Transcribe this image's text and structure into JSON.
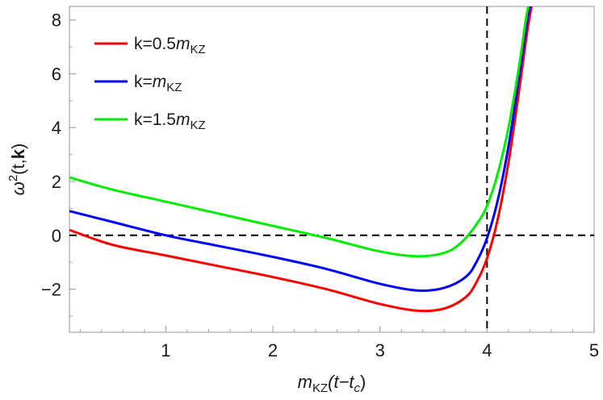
{
  "chart_data": {
    "type": "line",
    "xlabel": {
      "m": "m",
      "sub": "KZ",
      "rest": "(t−t",
      "csub": "c",
      "close": ")"
    },
    "ylabel": {
      "omega": "ω",
      "sup": "2",
      "args": "(t,",
      "bold": "k",
      "close": ")"
    },
    "xlim": [
      0.1,
      5.0
    ],
    "ylim": [
      -3.6,
      8.5
    ],
    "xticks": [
      1,
      2,
      3,
      4,
      5
    ],
    "yticks": [
      -2,
      0,
      2,
      4,
      6,
      8
    ],
    "reference_lines": {
      "y": 0,
      "x": 4.0,
      "style": "dashed",
      "color": "#000000"
    },
    "grid": false,
    "legend_position": "top-left",
    "series": [
      {
        "name": {
          "pre": "k=0.5",
          "m": "m",
          "sub": "KZ"
        },
        "color": "#ff0000",
        "x": [
          0.1,
          0.5,
          1.0,
          1.5,
          2.0,
          2.5,
          3.0,
          3.35,
          3.6,
          3.8,
          3.9,
          4.0,
          4.1,
          4.2,
          4.3,
          4.38,
          4.44
        ],
        "y": [
          0.2,
          -0.35,
          -0.75,
          -1.15,
          -1.55,
          -2.0,
          -2.55,
          -2.8,
          -2.72,
          -2.3,
          -1.75,
          -0.85,
          0.6,
          2.7,
          5.4,
          7.7,
          9.0
        ]
      },
      {
        "name": {
          "pre": "k=",
          "m": "m",
          "sub": "KZ"
        },
        "color": "#0000ff",
        "x": [
          0.1,
          0.5,
          1.0,
          1.5,
          2.0,
          2.5,
          3.0,
          3.35,
          3.6,
          3.8,
          3.9,
          4.0,
          4.1,
          4.2,
          4.3,
          4.38,
          4.43
        ],
        "y": [
          0.9,
          0.5,
          0.0,
          -0.4,
          -0.8,
          -1.25,
          -1.8,
          -2.05,
          -1.95,
          -1.55,
          -1.0,
          -0.1,
          1.3,
          3.3,
          5.9,
          8.1,
          9.0
        ]
      },
      {
        "name": {
          "pre": "k=1.5",
          "m": "m",
          "sub": "KZ"
        },
        "color": "#00ee00",
        "x": [
          0.1,
          0.5,
          1.0,
          1.5,
          2.0,
          2.5,
          3.0,
          3.35,
          3.6,
          3.75,
          3.9,
          4.0,
          4.1,
          4.2,
          4.3,
          4.37,
          4.42
        ],
        "y": [
          2.15,
          1.7,
          1.25,
          0.8,
          0.35,
          -0.1,
          -0.6,
          -0.78,
          -0.65,
          -0.3,
          0.4,
          1.1,
          2.3,
          4.0,
          6.3,
          8.2,
          9.0
        ]
      }
    ]
  }
}
